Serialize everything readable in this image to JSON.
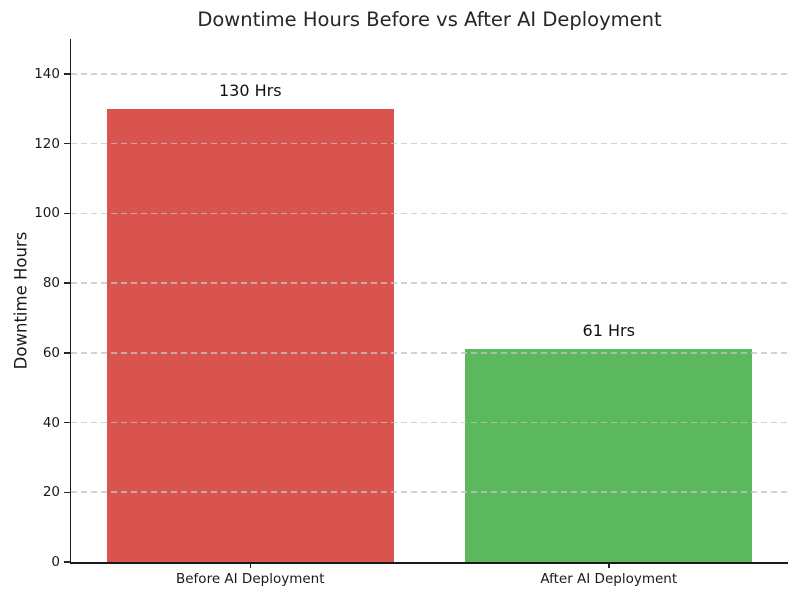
{
  "chart_data": {
    "type": "bar",
    "title": "Downtime Hours Before vs After AI Deployment",
    "xlabel": "",
    "ylabel": "Downtime Hours",
    "categories": [
      "Before AI Deployment",
      "After AI Deployment"
    ],
    "values": [
      130,
      61
    ],
    "bar_labels": [
      "130 Hrs",
      "61 Hrs"
    ],
    "bar_colors": [
      "#d9534f",
      "#5cb85c"
    ],
    "ylim": [
      0,
      150
    ],
    "yticks": [
      0,
      20,
      40,
      60,
      80,
      100,
      120,
      140
    ],
    "grid": "horizontal dashed, drawn over bars",
    "grid_color": "#c3c3c3",
    "legend": "none",
    "bar_width_fraction": 0.8
  }
}
